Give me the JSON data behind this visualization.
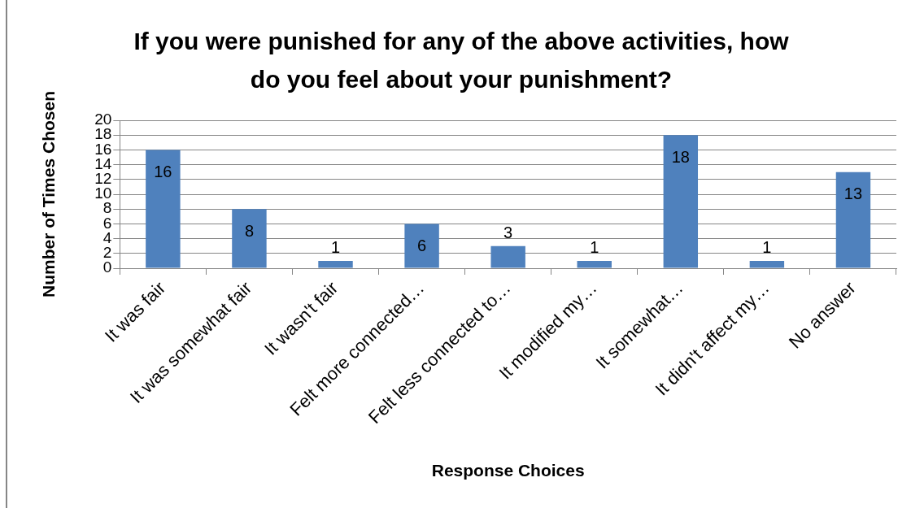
{
  "chart_data": {
    "type": "bar",
    "title": "If you were punished for any of the above activities, how do you feel about your punishment?",
    "xlabel": "Response Choices",
    "ylabel": "Number of Times Chosen",
    "categories": [
      "It was fair",
      "It was somewhat fair",
      "It wasn't fair",
      "Felt more connected…",
      "Felt less connected to…",
      "It modified my…",
      "It somewhat…",
      "It didn't affect my…",
      "No answer"
    ],
    "values": [
      16,
      8,
      1,
      6,
      3,
      1,
      18,
      1,
      13
    ],
    "color": "#4f81bd",
    "ylim": [
      0,
      20
    ],
    "yticks": [
      0,
      2,
      4,
      6,
      8,
      10,
      12,
      14,
      16,
      18,
      20
    ],
    "grid": "y",
    "data_labels": true
  }
}
